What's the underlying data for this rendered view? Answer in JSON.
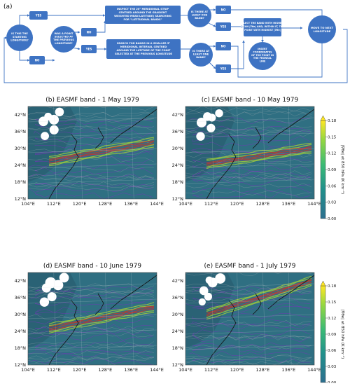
{
  "panel_a_label": "(a)",
  "flowchart": {
    "nodes": {
      "start": [
        "IS THIS THE",
        "STARTING",
        "LONGITUDE?"
      ],
      "yes1": [
        "YES"
      ],
      "no1": [
        "NO"
      ],
      "inspect": [
        "INSPECT THE 20° MERIDIONAL STRIP",
        "CENTRED AROUND THE GRADIENT",
        "WEIGHTED MEAN LATITUDE) SEARCHING",
        "FOR \"LATITUDINAL BANDS\""
      ],
      "band1": [
        "IS THERE AT",
        "LEAST ONE",
        "BAND?"
      ],
      "wasPoint": [
        "WAS A POINT",
        "SELECTED AT",
        "THE PREVIOUS",
        "LONGITUDE?"
      ],
      "no2": [
        "NO"
      ],
      "yes2": [
        "YES"
      ],
      "search": [
        "SEARCH FOR BANDS IN A SMALLER 5°",
        "MERIDIONAL INTERVAL CENTRED",
        "AROUND THE LATITUDE OF THE POINT",
        "SELECTED AT THE PREVIOUS LONGITUDE"
      ],
      "band2": [
        "IS THERE AT",
        "LEAST ONE",
        "BAND?"
      ],
      "no3": [
        "NO"
      ],
      "yes3": [
        "YES"
      ],
      "no4": [
        "NO"
      ],
      "yes4": [
        "YES"
      ],
      "select": [
        "SELECT THE BAND WITH HIGHEST",
        "MEAN |∇θe| AND, WITHIN IT, THE",
        "POINT WITH HIGHEST |∇θe|"
      ],
      "insert": [
        "INSERT",
        "COORDINATES",
        "OF THE POINT IN",
        "THE FRONTAL",
        "LINE"
      ],
      "move": [
        "MOVE TO NEXT",
        "LONGITUDE"
      ]
    }
  },
  "maps": [
    {
      "label": "(b)",
      "title": "EASMF band - 1 May 1979"
    },
    {
      "label": "(c)",
      "title": "EASMF band - 10 May 1979"
    },
    {
      "label": "(d)",
      "title": "EASMF band - 10 June 1979"
    },
    {
      "label": "(e)",
      "title": "EASMF band - 1 July 1979"
    }
  ],
  "lat_ticks": [
    "42°N",
    "36°N",
    "30°N",
    "24°N",
    "18°N",
    "12°N"
  ],
  "lon_ticks": [
    "104°E",
    "112°E",
    "120°E",
    "128°E",
    "136°E",
    "144°E"
  ],
  "colorbar": {
    "label": "|∇θe| at 850 hPa (K km⁻¹)",
    "ticks": [
      "0.18",
      "0.15",
      "0.12",
      "0.09",
      "0.06",
      "0.03",
      "0.00"
    ],
    "colors": [
      "#2d6f8e",
      "#21918c",
      "#3bbb75",
      "#93d741",
      "#fde725"
    ]
  },
  "map_colors": {
    "ocean": "#2f6f82",
    "coast": "#111111",
    "contour": "#7b2fbe",
    "band_low": "#9ccc3a",
    "band_high": "#c0392b"
  }
}
